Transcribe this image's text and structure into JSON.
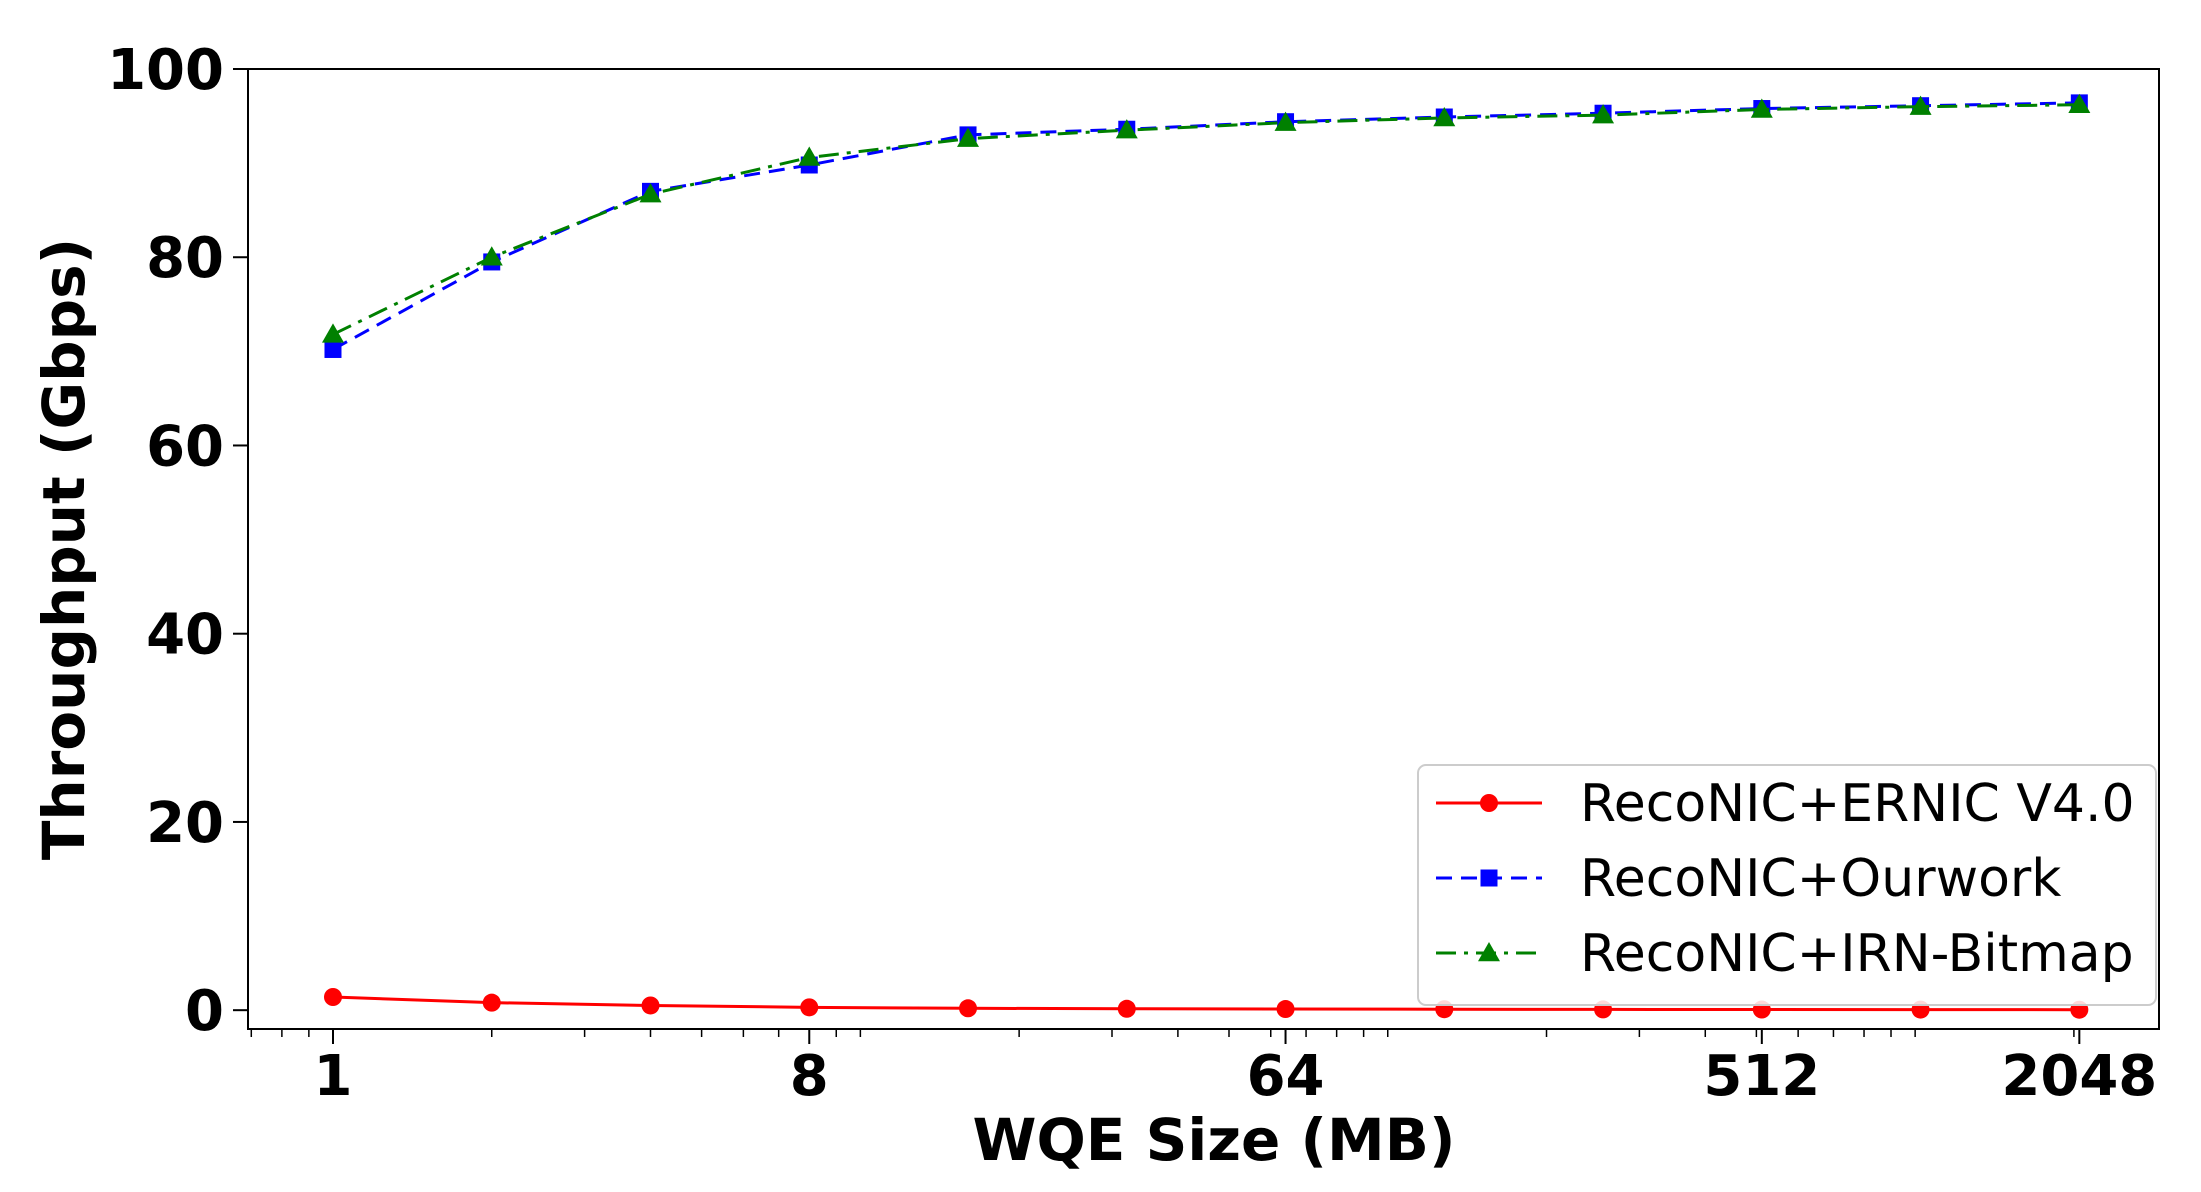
{
  "chart_data": {
    "type": "line",
    "title": "",
    "xlabel": "WQE Size (MB)",
    "ylabel": "Throughput (Gbps)",
    "x_scale": "log2",
    "xlim": [
      0.69,
      2900
    ],
    "ylim": [
      -2,
      100
    ],
    "x_ticks": [
      1,
      8,
      64,
      512,
      2048
    ],
    "x_tick_labels": [
      "1",
      "8",
      "64",
      "512",
      "2048"
    ],
    "y_ticks": [
      0,
      20,
      40,
      60,
      80,
      100
    ],
    "y_tick_labels": [
      "0",
      "20",
      "40",
      "60",
      "80",
      "100"
    ],
    "x": [
      1,
      2,
      4,
      8,
      16,
      32,
      64,
      128,
      256,
      512,
      1024,
      2048
    ],
    "legend_position": "lower-right",
    "grid": false,
    "series": [
      {
        "name": "RecoNIC+ERNIC V4.0",
        "color": "#ff0000",
        "line_style": "solid",
        "marker": "circle",
        "values": [
          1.4,
          0.8,
          0.5,
          0.3,
          0.2,
          0.15,
          0.12,
          0.1,
          0.08,
          0.07,
          0.06,
          0.05
        ]
      },
      {
        "name": "RecoNIC+Ourwork",
        "color": "#0000ff",
        "line_style": "dashed",
        "marker": "square",
        "values": [
          70.2,
          79.5,
          87.0,
          89.8,
          93.0,
          93.6,
          94.4,
          94.9,
          95.3,
          95.8,
          96.1,
          96.4
        ]
      },
      {
        "name": "RecoNIC+IRN-Bitmap",
        "color": "#008000",
        "line_style": "dashdot",
        "marker": "triangle",
        "values": [
          71.8,
          80.0,
          86.7,
          90.6,
          92.6,
          93.5,
          94.3,
          94.8,
          95.1,
          95.7,
          96.0,
          96.2
        ]
      }
    ]
  }
}
